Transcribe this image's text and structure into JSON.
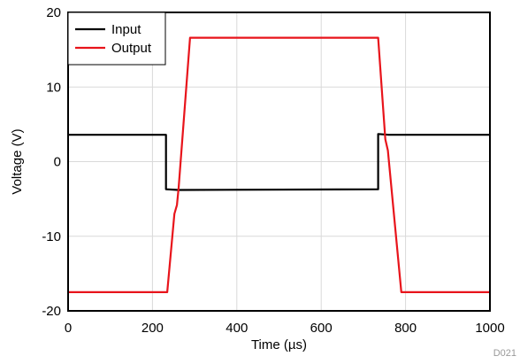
{
  "chart_data": {
    "type": "line",
    "xlabel": "Time (µs)",
    "ylabel": "Voltage (V)",
    "xlim": [
      0,
      1000
    ],
    "ylim": [
      -20,
      20
    ],
    "xticks": [
      0,
      200,
      400,
      600,
      800,
      1000
    ],
    "yticks": [
      -20,
      -10,
      0,
      10,
      20
    ],
    "grid": true,
    "legend_position": "top-left",
    "figure_id": "D021",
    "series": [
      {
        "name": "Input",
        "color": "#000000",
        "x": [
          0,
          232,
          232,
          262,
          735,
          735,
          760,
          1000
        ],
        "y": [
          3.6,
          3.6,
          -3.7,
          -3.8,
          -3.7,
          3.7,
          3.6,
          3.6
        ]
      },
      {
        "name": "Output",
        "color": "#e8141b",
        "x": [
          0,
          235,
          252,
          258,
          262,
          289,
          735,
          752,
          758,
          790,
          1000
        ],
        "y": [
          -17.5,
          -17.5,
          -7,
          -5.8,
          -3.5,
          16.6,
          16.6,
          3,
          1.5,
          -17.5,
          -17.5
        ]
      }
    ]
  }
}
